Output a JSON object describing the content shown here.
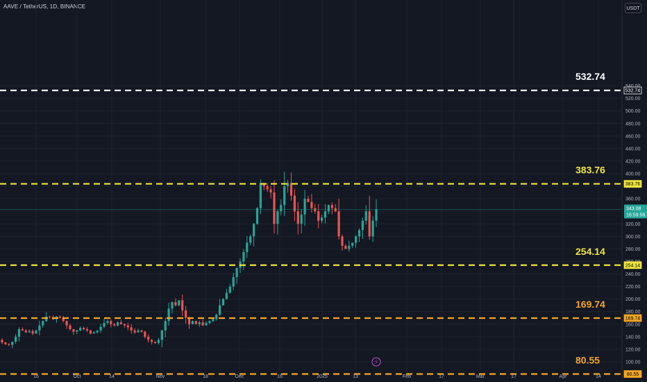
{
  "header": {
    "title": "AAVE / TetherUS, 1D, BINANCE",
    "currency_button": "USDT"
  },
  "colors": {
    "background": "#141823",
    "up": "#26a69a",
    "down": "#ef5350",
    "white_level": "#ffffff",
    "yellow_level": "#f0e63c",
    "orange_level": "#f5a623",
    "current_price_tag": "#26a69a"
  },
  "current_price": {
    "value": "343.08",
    "countdown": "16:59:58"
  },
  "chart_data": {
    "type": "candlestick",
    "ylim": [
      70,
      555
    ],
    "y_ticks": [
      100,
      120,
      140,
      160,
      180,
      200,
      220,
      240,
      260,
      280,
      300,
      320,
      340,
      360,
      380,
      400,
      420,
      440,
      460,
      480,
      500,
      520,
      540
    ],
    "y_tick_labels": [
      "100.00",
      "120.00",
      "140.00",
      "160.00",
      "180.00",
      "200.00",
      "220.00",
      "240.00",
      "260.00",
      "280.00",
      "300.00",
      "320.00",
      "340.00",
      "360.00",
      "380.00",
      "400.00",
      "420.00",
      "440.00",
      "460.00",
      "480.00",
      "500.00",
      "520.00",
      "540.00"
    ],
    "x_labels": [
      "16",
      "Oct",
      "14",
      "Nov",
      "18",
      "Dec",
      "16",
      "2025",
      "13",
      "Feb",
      "17",
      "Mar",
      "17",
      "Apr",
      "14"
    ],
    "levels": [
      {
        "value": 532.74,
        "label": "532.74",
        "style": "white"
      },
      {
        "value": 383.76,
        "label": "383.76",
        "style": "yellow"
      },
      {
        "value": 254.14,
        "label": "254.14",
        "style": "yellow"
      },
      {
        "value": 169.74,
        "label": "169.74",
        "style": "orange"
      },
      {
        "value": 80.55,
        "label": "80.55",
        "style": "orange"
      }
    ],
    "close_path": [
      131,
      128,
      127,
      132,
      140,
      152,
      150,
      147,
      149,
      145,
      150,
      158,
      165,
      172,
      171,
      168,
      172,
      170,
      165,
      158,
      152,
      148,
      150,
      154,
      152,
      150,
      145,
      147,
      150,
      156,
      162,
      165,
      160,
      158,
      163,
      160,
      158,
      155,
      150,
      147,
      150,
      148,
      140,
      135,
      132,
      130,
      135,
      150,
      165,
      185,
      195,
      190,
      198,
      182,
      170,
      160,
      165,
      160,
      163,
      158,
      162,
      165,
      168,
      175,
      190,
      200,
      210,
      220,
      235,
      250,
      260,
      275,
      290,
      300,
      320,
      345,
      385,
      380,
      375,
      370,
      320,
      340,
      350,
      380,
      385,
      365,
      340,
      320,
      335,
      360,
      355,
      345,
      340,
      325,
      330,
      340,
      350,
      345,
      340,
      300,
      285,
      280,
      285,
      290,
      300,
      310,
      325,
      340,
      300,
      325,
      343.08
    ]
  }
}
